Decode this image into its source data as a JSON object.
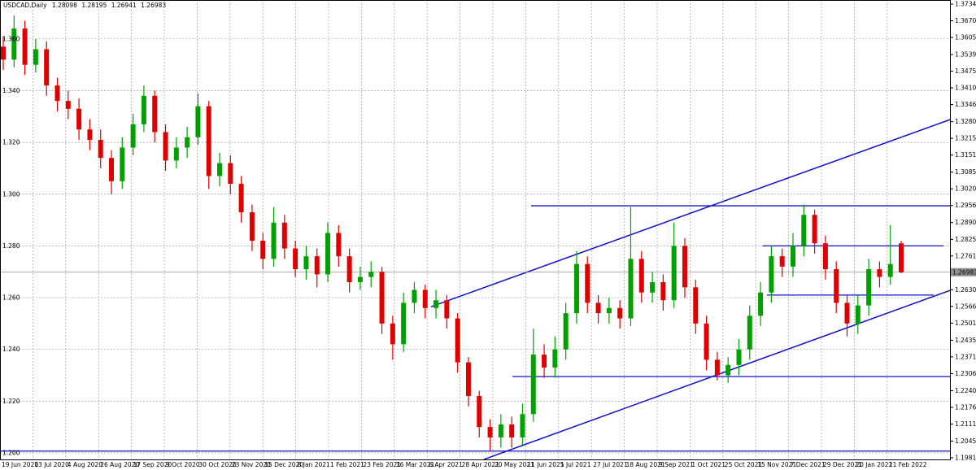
{
  "chart_data": {
    "type": "candlestick",
    "title": "USDCAD,Daily",
    "colors": {
      "up": "#00a000",
      "down": "#e00000",
      "levels": "#1010d0",
      "grid": "#a0a0a0"
    },
    "grid": true,
    "ylim": [
      1.19811,
      1.37346
    ],
    "yticks": [
      1.37346,
      1.36701,
      1.36055,
      1.35396,
      1.34751,
      1.34106,
      1.33461,
      1.32801,
      1.32156,
      1.31511,
      1.30851,
      1.30206,
      1.29561,
      1.28901,
      1.28256,
      1.27611,
      1.26951,
      1.26306,
      1.25661,
      1.25016,
      1.24356,
      1.23711,
      1.23066,
      1.22406,
      1.21761,
      1.21116,
      1.20456,
      1.19811
    ],
    "level_ticks": [
      {
        "value": 1.36,
        "label": "1.360"
      },
      {
        "value": 1.34,
        "label": "1.340"
      },
      {
        "value": 1.32,
        "label": "1.320"
      },
      {
        "value": 1.3,
        "label": "1.300"
      },
      {
        "value": 1.28,
        "label": "1.280"
      },
      {
        "value": 1.26,
        "label": "1.260"
      },
      {
        "value": 1.24,
        "label": "1.240"
      },
      {
        "value": 1.22,
        "label": "1.220"
      },
      {
        "value": 1.2,
        "label": "1.200"
      }
    ],
    "categories": [
      "19 Jun 2020",
      "13 Jul 2020",
      "4 Aug 2020",
      "26 Aug 2020",
      "17 Sep 2020",
      "9 Oct 2020",
      "30 Oct 2020",
      "23 Nov 2020",
      "15 Dec 2020",
      "8 Jan 2021",
      "1 Feb 2021",
      "23 Feb 2021",
      "16 Mar 2021",
      "6 Apr 2021",
      "28 Apr 2021",
      "20 May 2021",
      "11 Jun 2021",
      "5 Jul 2021",
      "27 Jul 2021",
      "18 Aug 2021",
      "9 Sep 2021",
      "1 Oct 2021",
      "25 Oct 2021",
      "15 Nov 2021",
      "7 Dec 2021",
      "29 Dec 2021",
      "20 Jan 2022",
      "11 Feb 2022"
    ],
    "candles": {
      "open": [
        1.357,
        1.352,
        1.364,
        1.35,
        1.356,
        1.342,
        1.336,
        1.333,
        1.325,
        1.321,
        1.314,
        1.305,
        1.318,
        1.327,
        1.338,
        1.324,
        1.313,
        1.318,
        1.322,
        1.334,
        1.307,
        1.312,
        1.304,
        1.293,
        1.282,
        1.275,
        1.289,
        1.279,
        1.271,
        1.276,
        1.269,
        1.285,
        1.276,
        1.266,
        1.268,
        1.27,
        1.25,
        1.242,
        1.258,
        1.263,
        1.256,
        1.259,
        1.252,
        1.235,
        1.222,
        1.21,
        1.206,
        1.211,
        1.206,
        1.215,
        1.238,
        1.233,
        1.24,
        1.254,
        1.273,
        1.258,
        1.254,
        1.256,
        1.252,
        1.275,
        1.262,
        1.266,
        1.259,
        1.28,
        1.264,
        1.25,
        1.236,
        1.23,
        1.234,
        1.24,
        1.253,
        1.262,
        1.276,
        1.272,
        1.28,
        1.292,
        1.281,
        1.271,
        1.258,
        1.25,
        1.257,
        1.271,
        1.268,
        1.28098
      ],
      "high": [
        1.361,
        1.369,
        1.367,
        1.36,
        1.359,
        1.345,
        1.34,
        1.337,
        1.329,
        1.325,
        1.317,
        1.322,
        1.331,
        1.342,
        1.34,
        1.327,
        1.322,
        1.326,
        1.339,
        1.336,
        1.316,
        1.315,
        1.307,
        1.296,
        1.285,
        1.295,
        1.292,
        1.282,
        1.28,
        1.279,
        1.289,
        1.288,
        1.279,
        1.272,
        1.274,
        1.272,
        1.253,
        1.262,
        1.266,
        1.265,
        1.263,
        1.261,
        1.254,
        1.237,
        1.224,
        1.213,
        1.215,
        1.214,
        1.219,
        1.248,
        1.242,
        1.245,
        1.258,
        1.278,
        1.276,
        1.261,
        1.26,
        1.259,
        1.295,
        1.278,
        1.27,
        1.269,
        1.289,
        1.283,
        1.267,
        1.253,
        1.239,
        1.237,
        1.244,
        1.257,
        1.266,
        1.28,
        1.279,
        1.285,
        1.296,
        1.294,
        1.284,
        1.274,
        1.261,
        1.261,
        1.275,
        1.274,
        1.288,
        1.28195
      ],
      "low": [
        1.348,
        1.349,
        1.346,
        1.347,
        1.338,
        1.332,
        1.329,
        1.321,
        1.317,
        1.31,
        1.3,
        1.302,
        1.315,
        1.324,
        1.32,
        1.309,
        1.31,
        1.314,
        1.319,
        1.302,
        1.303,
        1.3,
        1.289,
        1.278,
        1.271,
        1.272,
        1.275,
        1.268,
        1.267,
        1.264,
        1.266,
        1.272,
        1.262,
        1.263,
        1.264,
        1.246,
        1.236,
        1.239,
        1.254,
        1.252,
        1.252,
        1.248,
        1.231,
        1.218,
        1.206,
        1.201,
        1.202,
        1.202,
        1.203,
        1.212,
        1.229,
        1.229,
        1.236,
        1.25,
        1.254,
        1.25,
        1.25,
        1.248,
        1.249,
        1.258,
        1.258,
        1.255,
        1.256,
        1.26,
        1.246,
        1.232,
        1.228,
        1.227,
        1.23,
        1.236,
        1.249,
        1.258,
        1.268,
        1.268,
        1.276,
        1.277,
        1.267,
        1.254,
        1.245,
        1.246,
        1.253,
        1.264,
        1.265,
        1.26941
      ],
      "close": [
        1.352,
        1.364,
        1.35,
        1.356,
        1.342,
        1.336,
        1.333,
        1.325,
        1.321,
        1.314,
        1.305,
        1.318,
        1.327,
        1.338,
        1.324,
        1.313,
        1.318,
        1.322,
        1.334,
        1.307,
        1.312,
        1.304,
        1.293,
        1.282,
        1.275,
        1.289,
        1.279,
        1.271,
        1.276,
        1.269,
        1.285,
        1.276,
        1.266,
        1.268,
        1.27,
        1.25,
        1.242,
        1.258,
        1.263,
        1.256,
        1.259,
        1.252,
        1.235,
        1.222,
        1.21,
        1.206,
        1.211,
        1.206,
        1.215,
        1.238,
        1.233,
        1.24,
        1.254,
        1.273,
        1.258,
        1.254,
        1.256,
        1.252,
        1.275,
        1.262,
        1.266,
        1.259,
        1.28,
        1.264,
        1.25,
        1.236,
        1.23,
        1.234,
        1.24,
        1.253,
        1.262,
        1.276,
        1.272,
        1.28,
        1.292,
        1.281,
        1.271,
        1.258,
        1.25,
        1.257,
        1.271,
        1.268,
        1.273,
        1.26983
      ]
    },
    "levels": [
      1.2955,
      1.28,
      1.261,
      1.2295,
      1.2007
    ],
    "channel_lines": [
      [
        1.2565,
        1.3288
      ],
      [
        1.1975,
        1.2628
      ]
    ]
  }
}
